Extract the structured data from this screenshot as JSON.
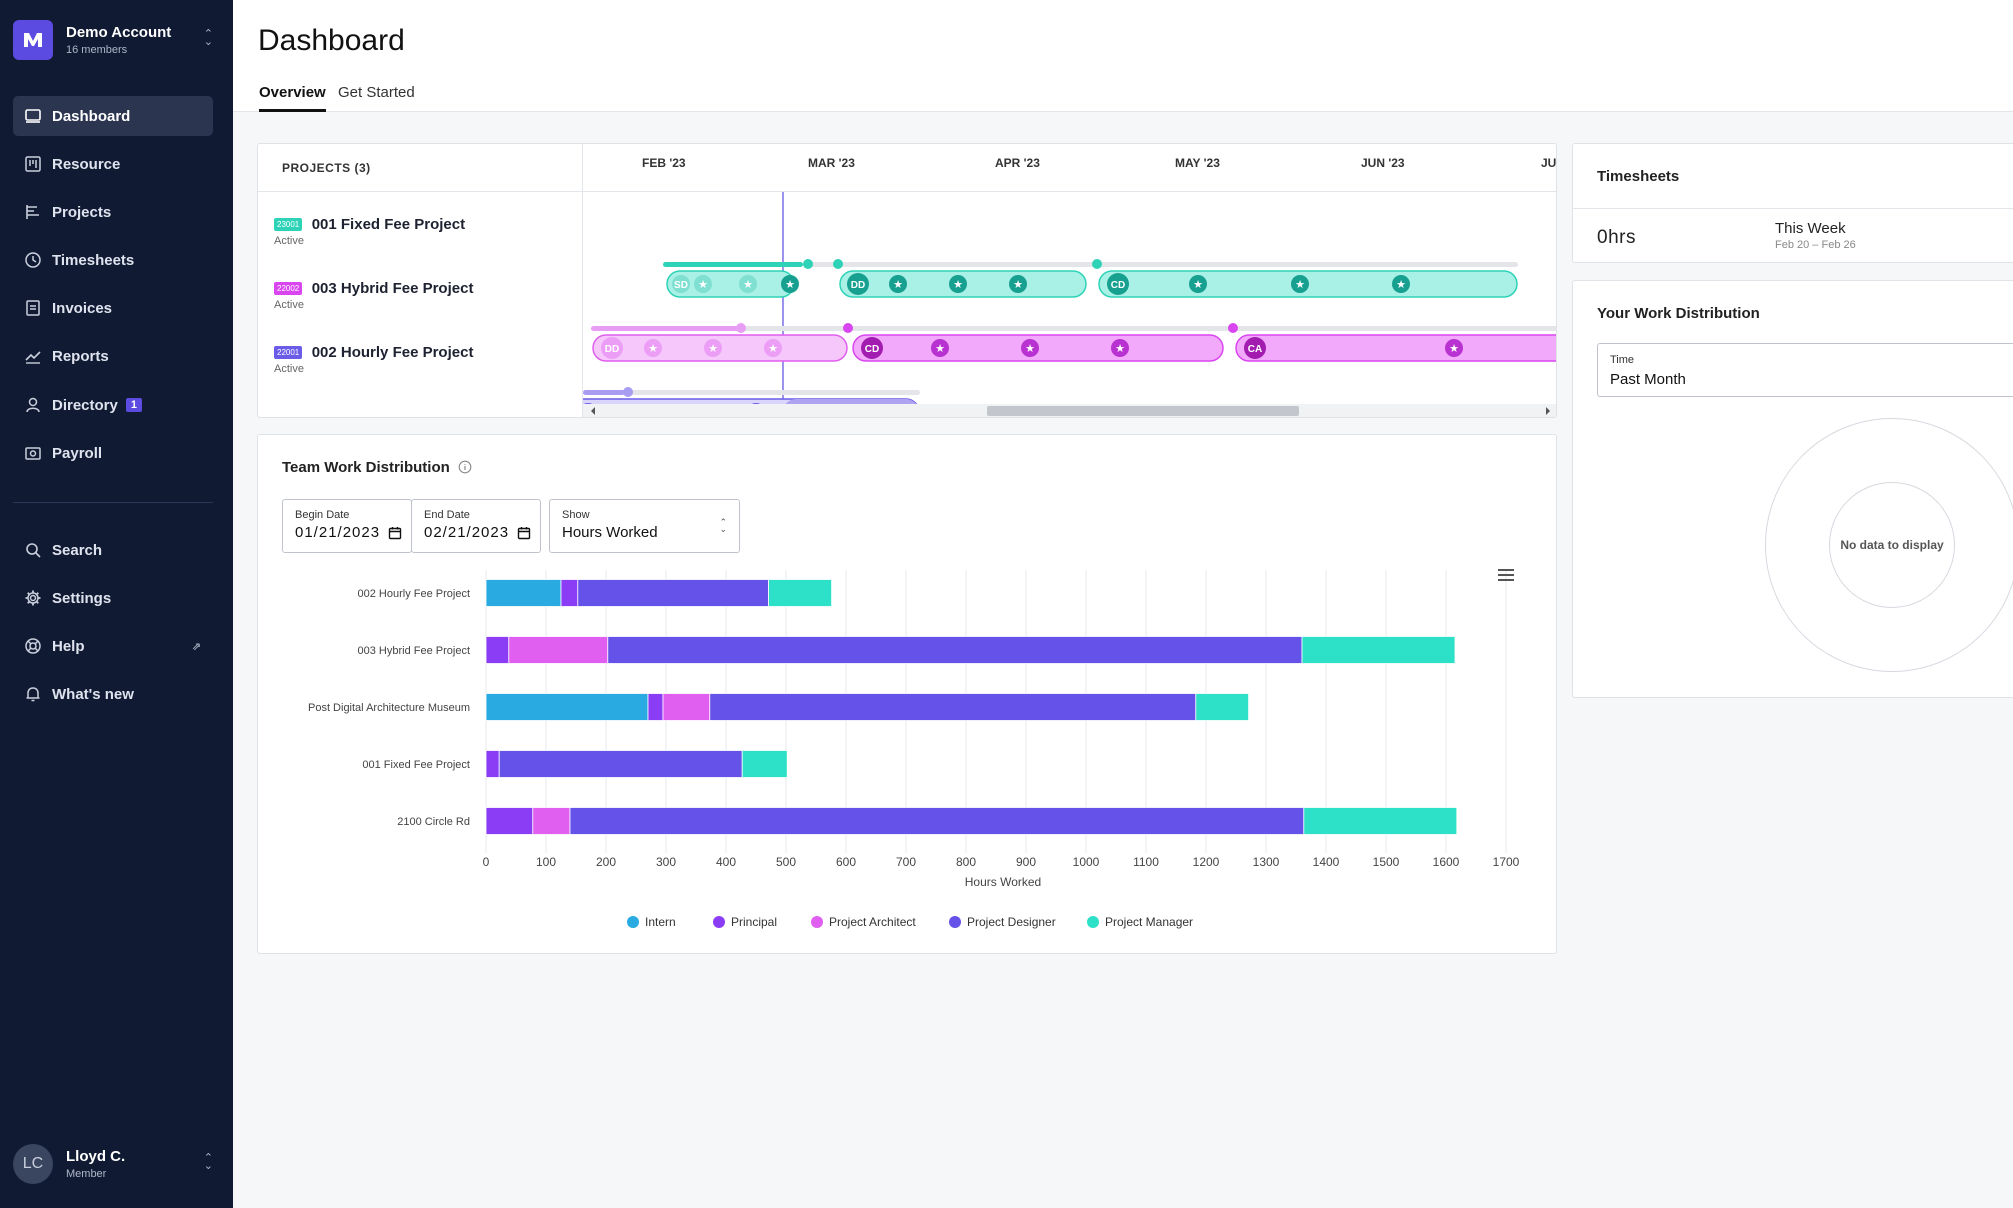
{
  "account": {
    "name": "Demo Account",
    "members": "16 members"
  },
  "nav": {
    "items": [
      {
        "label": "Dashboard",
        "icon": "dashboard-icon"
      },
      {
        "label": "Resource",
        "icon": "resource-icon"
      },
      {
        "label": "Projects",
        "icon": "projects-icon"
      },
      {
        "label": "Timesheets",
        "icon": "clock-icon"
      },
      {
        "label": "Invoices",
        "icon": "invoice-icon"
      },
      {
        "label": "Reports",
        "icon": "chart-line-icon"
      },
      {
        "label": "Directory",
        "icon": "person-icon",
        "badge": "1"
      },
      {
        "label": "Payroll",
        "icon": "payroll-icon"
      }
    ],
    "secondary": [
      {
        "label": "Search",
        "icon": "search-icon"
      },
      {
        "label": "Settings",
        "icon": "gear-icon"
      },
      {
        "label": "Help",
        "icon": "help-icon"
      },
      {
        "label": "What's new",
        "icon": "bell-icon"
      }
    ]
  },
  "user": {
    "initials": "LC",
    "name": "Lloyd C.",
    "role": "Member"
  },
  "header": {
    "title": "Dashboard",
    "tabs": [
      "Overview",
      "Get Started"
    ]
  },
  "projects": {
    "heading": "PROJECTS (3)",
    "months": [
      "FEB '23",
      "MAR '23",
      "APR '23",
      "MAY '23",
      "JUN '23",
      "JU"
    ],
    "rows": [
      {
        "code": "23001",
        "name": "001 Fixed Fee Project",
        "status": "Active",
        "color": "#2ed3b7"
      },
      {
        "code": "22002",
        "name": "003 Hybrid Fee Project",
        "status": "Active",
        "color": "#d946ef"
      },
      {
        "code": "22001",
        "name": "002 Hourly Fee Project",
        "status": "Active",
        "color": "#6b5ce7"
      }
    ],
    "phases": {
      "sd": "SD",
      "dd": "DD",
      "cd": "CD",
      "ca": "CA"
    }
  },
  "team": {
    "title": "Team Work Distribution",
    "begin_label": "Begin Date",
    "begin_value": "01/21/2023",
    "end_label": "End Date",
    "end_value": "02/21/2023",
    "show_label": "Show",
    "show_value": "Hours Worked"
  },
  "chart_data": {
    "type": "bar",
    "orientation": "horizontal",
    "stacked": true,
    "categories": [
      "002 Hourly Fee Project",
      "003 Hybrid Fee Project",
      "Post Digital Architecture Museum",
      "001 Fixed Fee Project",
      "2100 Circle Rd"
    ],
    "series": [
      {
        "name": "Intern",
        "color": "#29abe2",
        "values": [
          125,
          0,
          270,
          0,
          0
        ]
      },
      {
        "name": "Principal",
        "color": "#8b3df5",
        "values": [
          28,
          38,
          25,
          22,
          78
        ]
      },
      {
        "name": "Project Architect",
        "color": "#e05ef0",
        "values": [
          0,
          165,
          78,
          0,
          62
        ]
      },
      {
        "name": "Project Designer",
        "color": "#6552e8",
        "values": [
          318,
          1157,
          810,
          405,
          1223
        ]
      },
      {
        "name": "Project Manager",
        "color": "#2de0c8",
        "values": [
          105,
          255,
          88,
          75,
          255
        ]
      }
    ],
    "xlabel": "Hours Worked",
    "ylabel": "",
    "xlim": [
      0,
      1700
    ],
    "xticks": [
      0,
      100,
      200,
      300,
      400,
      500,
      600,
      700,
      800,
      900,
      1000,
      1100,
      1200,
      1300,
      1400,
      1500,
      1600,
      1700
    ],
    "grid": true,
    "legend": "bottom"
  },
  "timesheets": {
    "title": "Timesheets",
    "hours": "0hrs",
    "period": "This Week",
    "range": "Feb 20 – Feb 26"
  },
  "work_dist": {
    "title": "Your Work Distribution",
    "select_label": "Time",
    "select_value": "Past Month",
    "empty": "No data to display"
  }
}
